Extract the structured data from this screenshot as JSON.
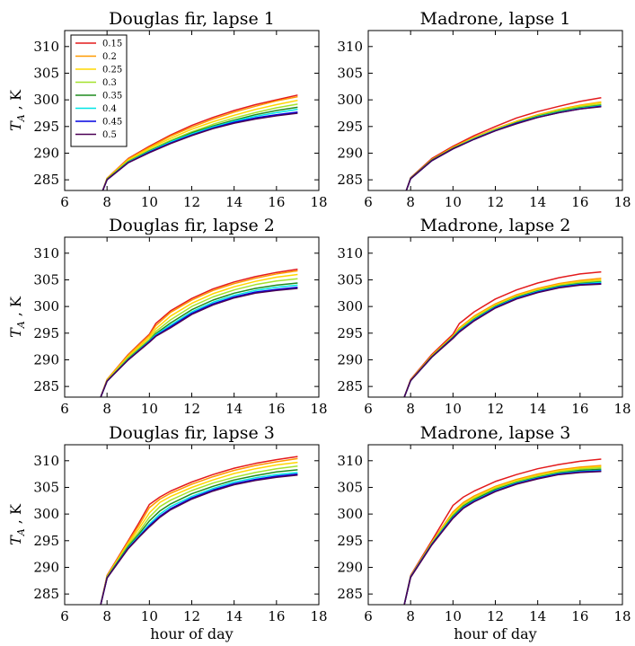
{
  "chart_data": [
    {
      "type": "line",
      "title": "Douglas fir, lapse 1",
      "xlabel": "",
      "ylabel": "T_A , K",
      "xlim": [
        6,
        18
      ],
      "ylim": [
        283,
        313
      ],
      "xticks": [
        6,
        8,
        10,
        12,
        14,
        16,
        18
      ],
      "yticks": [
        285,
        290,
        295,
        300,
        305,
        310
      ],
      "grid": false,
      "legend": "top-left",
      "x": [
        7.8,
        8,
        9,
        10,
        11,
        12,
        13,
        14,
        15,
        16,
        17
      ],
      "series": [
        {
          "name": "0.15",
          "values": [
            283.0,
            285.3,
            289.0,
            291.3,
            293.4,
            295.2,
            296.7,
            298.0,
            299.1,
            300.0,
            300.9
          ]
        },
        {
          "name": "0.2",
          "values": [
            283.0,
            285.3,
            288.9,
            291.1,
            293.2,
            294.9,
            296.4,
            297.7,
            298.8,
            299.8,
            300.6
          ]
        },
        {
          "name": "0.25",
          "values": [
            283.0,
            285.2,
            288.7,
            290.9,
            292.8,
            294.5,
            295.9,
            297.1,
            298.2,
            299.1,
            299.9
          ]
        },
        {
          "name": "0.3",
          "values": [
            283.0,
            285.1,
            288.5,
            290.6,
            292.4,
            294.0,
            295.4,
            296.6,
            297.6,
            298.5,
            299.2
          ]
        },
        {
          "name": "0.35",
          "values": [
            283.0,
            285.1,
            288.4,
            290.4,
            292.2,
            293.8,
            295.1,
            296.2,
            297.2,
            298.0,
            298.6
          ]
        },
        {
          "name": "0.4",
          "values": [
            283.0,
            285.0,
            288.3,
            290.3,
            292.1,
            293.6,
            294.9,
            296.0,
            296.9,
            297.6,
            298.2
          ]
        },
        {
          "name": "0.45",
          "values": [
            283.0,
            285.0,
            288.2,
            290.2,
            291.9,
            293.4,
            294.7,
            295.8,
            296.6,
            297.2,
            297.7
          ]
        },
        {
          "name": "0.5",
          "values": [
            283.0,
            285.0,
            288.2,
            290.1,
            291.8,
            293.3,
            294.6,
            295.6,
            296.4,
            297.0,
            297.5
          ]
        }
      ]
    },
    {
      "type": "line",
      "title": "Madrone, lapse 1",
      "xlabel": "",
      "ylabel": "",
      "xlim": [
        6,
        18
      ],
      "ylim": [
        283,
        313
      ],
      "xticks": [
        6,
        8,
        10,
        12,
        14,
        16,
        18
      ],
      "yticks": [
        285,
        290,
        295,
        300,
        305,
        310
      ],
      "grid": false,
      "x": [
        7.8,
        8,
        9,
        10,
        11,
        12,
        13,
        14,
        15,
        16,
        17
      ],
      "series": [
        {
          "name": "0.15",
          "values": [
            283.0,
            285.4,
            289.0,
            291.3,
            293.3,
            295.0,
            296.6,
            297.8,
            298.8,
            299.7,
            300.4
          ]
        },
        {
          "name": "0.2",
          "values": [
            283.0,
            285.3,
            288.8,
            291.1,
            293.0,
            294.6,
            296.0,
            297.2,
            298.2,
            299.0,
            299.6
          ]
        },
        {
          "name": "0.25",
          "values": [
            283.0,
            285.3,
            288.8,
            291.0,
            292.9,
            294.5,
            295.9,
            297.1,
            298.1,
            298.9,
            299.5
          ]
        },
        {
          "name": "0.3",
          "values": [
            283.0,
            285.3,
            288.7,
            290.9,
            292.8,
            294.4,
            295.8,
            297.0,
            298.0,
            298.7,
            299.2
          ]
        },
        {
          "name": "0.35",
          "values": [
            283.0,
            285.3,
            288.7,
            290.9,
            292.7,
            294.3,
            295.7,
            296.9,
            297.8,
            298.5,
            299.0
          ]
        },
        {
          "name": "0.4",
          "values": [
            283.0,
            285.2,
            288.6,
            290.8,
            292.7,
            294.3,
            295.6,
            296.8,
            297.7,
            298.4,
            298.9
          ]
        },
        {
          "name": "0.45",
          "values": [
            283.0,
            285.2,
            288.6,
            290.8,
            292.6,
            294.2,
            295.6,
            296.7,
            297.6,
            298.3,
            298.8
          ]
        },
        {
          "name": "0.5",
          "values": [
            283.0,
            285.2,
            288.6,
            290.8,
            292.6,
            294.2,
            295.5,
            296.7,
            297.6,
            298.3,
            298.7
          ]
        }
      ]
    },
    {
      "type": "line",
      "title": "Douglas fir, lapse 2",
      "xlabel": "",
      "ylabel": "T_A , K",
      "xlim": [
        6,
        18
      ],
      "ylim": [
        283,
        313
      ],
      "xticks": [
        6,
        8,
        10,
        12,
        14,
        16,
        18
      ],
      "yticks": [
        285,
        290,
        295,
        300,
        305,
        310
      ],
      "grid": false,
      "x": [
        7.7,
        8,
        9,
        10,
        10.3,
        11,
        12,
        13,
        14,
        15,
        16,
        17
      ],
      "series": [
        {
          "name": "0.15",
          "values": [
            283.0,
            286.3,
            291.0,
            294.8,
            296.8,
            299.2,
            301.5,
            303.3,
            304.6,
            305.6,
            306.4,
            307.0
          ]
        },
        {
          "name": "0.2",
          "values": [
            283.0,
            286.3,
            290.9,
            294.6,
            296.4,
            298.9,
            301.2,
            303.0,
            304.3,
            305.3,
            306.1,
            306.7
          ]
        },
        {
          "name": "0.25",
          "values": [
            283.0,
            286.2,
            290.6,
            294.2,
            295.8,
            298.2,
            300.6,
            302.4,
            303.7,
            304.7,
            305.5,
            306.0
          ]
        },
        {
          "name": "0.3",
          "values": [
            283.0,
            286.1,
            290.4,
            293.8,
            295.3,
            297.5,
            300.0,
            301.8,
            303.1,
            304.1,
            304.8,
            305.2
          ]
        },
        {
          "name": "0.35",
          "values": [
            283.0,
            286.0,
            290.2,
            293.6,
            294.9,
            296.9,
            299.4,
            301.2,
            302.5,
            303.4,
            304.0,
            304.4
          ]
        },
        {
          "name": "0.4",
          "values": [
            283.0,
            286.0,
            290.1,
            293.5,
            294.7,
            296.5,
            299.0,
            300.8,
            302.1,
            303.0,
            303.6,
            304.0
          ]
        },
        {
          "name": "0.45",
          "values": [
            283.0,
            286.0,
            290.0,
            293.4,
            294.5,
            296.2,
            298.7,
            300.5,
            301.8,
            302.7,
            303.2,
            303.6
          ]
        },
        {
          "name": "0.5",
          "values": [
            283.0,
            286.0,
            290.0,
            293.3,
            294.4,
            296.0,
            298.5,
            300.3,
            301.6,
            302.5,
            303.0,
            303.4
          ]
        }
      ]
    },
    {
      "type": "line",
      "title": "Madrone, lapse 2",
      "xlabel": "",
      "ylabel": "",
      "xlim": [
        6,
        18
      ],
      "ylim": [
        283,
        313
      ],
      "xticks": [
        6,
        8,
        10,
        12,
        14,
        16,
        18
      ],
      "yticks": [
        285,
        290,
        295,
        300,
        305,
        310
      ],
      "grid": false,
      "x": [
        7.7,
        8,
        9,
        10,
        10.3,
        11,
        12,
        13,
        14,
        15,
        16,
        17
      ],
      "series": [
        {
          "name": "0.15",
          "values": [
            283.0,
            286.3,
            291.0,
            294.8,
            296.8,
            299.0,
            301.4,
            303.1,
            304.4,
            305.4,
            306.1,
            306.5
          ]
        },
        {
          "name": "0.2",
          "values": [
            283.0,
            286.2,
            290.8,
            294.5,
            296.0,
            298.2,
            300.5,
            302.2,
            303.4,
            304.3,
            304.9,
            305.3
          ]
        },
        {
          "name": "0.25",
          "values": [
            283.0,
            286.2,
            290.7,
            294.4,
            295.8,
            298.0,
            300.3,
            302.0,
            303.2,
            304.1,
            304.7,
            305.0
          ]
        },
        {
          "name": "0.3",
          "values": [
            283.0,
            286.1,
            290.6,
            294.3,
            295.6,
            297.8,
            300.1,
            301.8,
            303.0,
            303.9,
            304.5,
            304.8
          ]
        },
        {
          "name": "0.35",
          "values": [
            283.0,
            286.1,
            290.6,
            294.2,
            295.5,
            297.6,
            300.0,
            301.7,
            302.9,
            303.8,
            304.3,
            304.6
          ]
        },
        {
          "name": "0.4",
          "values": [
            283.0,
            286.1,
            290.5,
            294.1,
            295.4,
            297.5,
            299.9,
            301.6,
            302.8,
            303.7,
            304.2,
            304.5
          ]
        },
        {
          "name": "0.45",
          "values": [
            283.0,
            286.1,
            290.5,
            294.1,
            295.3,
            297.4,
            299.8,
            301.5,
            302.7,
            303.6,
            304.1,
            304.3
          ]
        },
        {
          "name": "0.5",
          "values": [
            283.0,
            286.1,
            290.5,
            294.0,
            295.2,
            297.3,
            299.7,
            301.4,
            302.6,
            303.5,
            304.0,
            304.2
          ]
        }
      ]
    },
    {
      "type": "line",
      "title": "Douglas fir, lapse 3",
      "xlabel": "hour of day",
      "ylabel": "T_A , K",
      "xlim": [
        6,
        18
      ],
      "ylim": [
        283,
        313
      ],
      "xticks": [
        6,
        8,
        10,
        12,
        14,
        16,
        18
      ],
      "yticks": [
        285,
        290,
        295,
        300,
        305,
        310
      ],
      "grid": false,
      "x": [
        7.7,
        8,
        9,
        9.5,
        10,
        10.5,
        11,
        12,
        13,
        14,
        15,
        16,
        17
      ],
      "series": [
        {
          "name": "0.15",
          "values": [
            283.0,
            288.5,
            295.0,
            298.3,
            301.8,
            303.2,
            304.3,
            306.0,
            307.4,
            308.6,
            309.5,
            310.2,
            310.8
          ]
        },
        {
          "name": "0.2",
          "values": [
            283.0,
            288.4,
            294.8,
            297.8,
            301.2,
            302.8,
            303.9,
            305.6,
            307.0,
            308.2,
            309.1,
            309.8,
            310.4
          ]
        },
        {
          "name": "0.25",
          "values": [
            283.0,
            288.3,
            294.5,
            297.2,
            300.2,
            302.2,
            303.3,
            305.0,
            306.4,
            307.6,
            308.5,
            309.2,
            309.7
          ]
        },
        {
          "name": "0.3",
          "values": [
            283.0,
            288.2,
            294.2,
            296.6,
            299.4,
            301.4,
            302.6,
            304.4,
            305.8,
            306.9,
            307.8,
            308.5,
            309.0
          ]
        },
        {
          "name": "0.35",
          "values": [
            283.0,
            288.1,
            293.9,
            296.2,
            298.7,
            300.6,
            301.9,
            303.8,
            305.2,
            306.4,
            307.2,
            307.9,
            308.3
          ]
        },
        {
          "name": "0.4",
          "values": [
            283.0,
            288.0,
            293.7,
            295.9,
            298.1,
            300.0,
            301.4,
            303.3,
            304.8,
            306.0,
            306.8,
            307.4,
            307.8
          ]
        },
        {
          "name": "0.45",
          "values": [
            283.0,
            288.0,
            293.6,
            295.7,
            297.8,
            299.6,
            301.0,
            303.0,
            304.5,
            305.7,
            306.5,
            307.1,
            307.5
          ]
        },
        {
          "name": "0.5",
          "values": [
            283.0,
            288.0,
            293.5,
            295.6,
            297.6,
            299.4,
            300.8,
            302.8,
            304.3,
            305.5,
            306.3,
            306.9,
            307.3
          ]
        }
      ]
    },
    {
      "type": "line",
      "title": "Madrone, lapse 3",
      "xlabel": "hour of day",
      "ylabel": "",
      "xlim": [
        6,
        18
      ],
      "ylim": [
        283,
        313
      ],
      "xticks": [
        6,
        8,
        10,
        12,
        14,
        16,
        18
      ],
      "yticks": [
        285,
        290,
        295,
        300,
        305,
        310
      ],
      "grid": false,
      "x": [
        7.7,
        8,
        9,
        9.5,
        10,
        10.5,
        11,
        12,
        13,
        14,
        15,
        16,
        17
      ],
      "series": [
        {
          "name": "0.15",
          "values": [
            283.0,
            288.5,
            295.0,
            298.3,
            301.6,
            303.2,
            304.3,
            306.1,
            307.4,
            308.5,
            309.3,
            309.9,
            310.3
          ]
        },
        {
          "name": "0.2",
          "values": [
            283.0,
            288.4,
            294.7,
            297.6,
            300.4,
            302.2,
            303.4,
            305.2,
            306.5,
            307.5,
            308.3,
            308.8,
            309.1
          ]
        },
        {
          "name": "0.25",
          "values": [
            283.0,
            288.3,
            294.6,
            297.4,
            300.1,
            301.9,
            303.1,
            305.0,
            306.3,
            307.3,
            308.1,
            308.6,
            308.9
          ]
        },
        {
          "name": "0.3",
          "values": [
            283.0,
            288.3,
            294.5,
            297.2,
            299.8,
            301.7,
            302.9,
            304.8,
            306.1,
            307.1,
            307.9,
            308.4,
            308.7
          ]
        },
        {
          "name": "0.35",
          "values": [
            283.0,
            288.2,
            294.4,
            297.0,
            299.6,
            301.5,
            302.7,
            304.6,
            305.9,
            306.9,
            307.7,
            308.2,
            308.4
          ]
        },
        {
          "name": "0.4",
          "values": [
            283.0,
            288.2,
            294.3,
            296.9,
            299.4,
            301.3,
            302.5,
            304.4,
            305.8,
            306.8,
            307.6,
            308.0,
            308.2
          ]
        },
        {
          "name": "0.45",
          "values": [
            283.0,
            288.2,
            294.3,
            296.8,
            299.3,
            301.2,
            302.4,
            304.3,
            305.7,
            306.7,
            307.5,
            307.9,
            308.1
          ]
        },
        {
          "name": "0.5",
          "values": [
            283.0,
            288.1,
            294.2,
            296.7,
            299.2,
            301.1,
            302.3,
            304.2,
            305.6,
            306.6,
            307.4,
            307.8,
            308.0
          ]
        }
      ]
    }
  ],
  "series_colors": {
    "0.15": "#e31a1c",
    "0.2": "#ff9900",
    "0.25": "#ffd700",
    "0.3": "#a4e22c",
    "0.35": "#1e8c1e",
    "0.4": "#00e5e5",
    "0.45": "#0000e0",
    "0.5": "#4b0055"
  }
}
